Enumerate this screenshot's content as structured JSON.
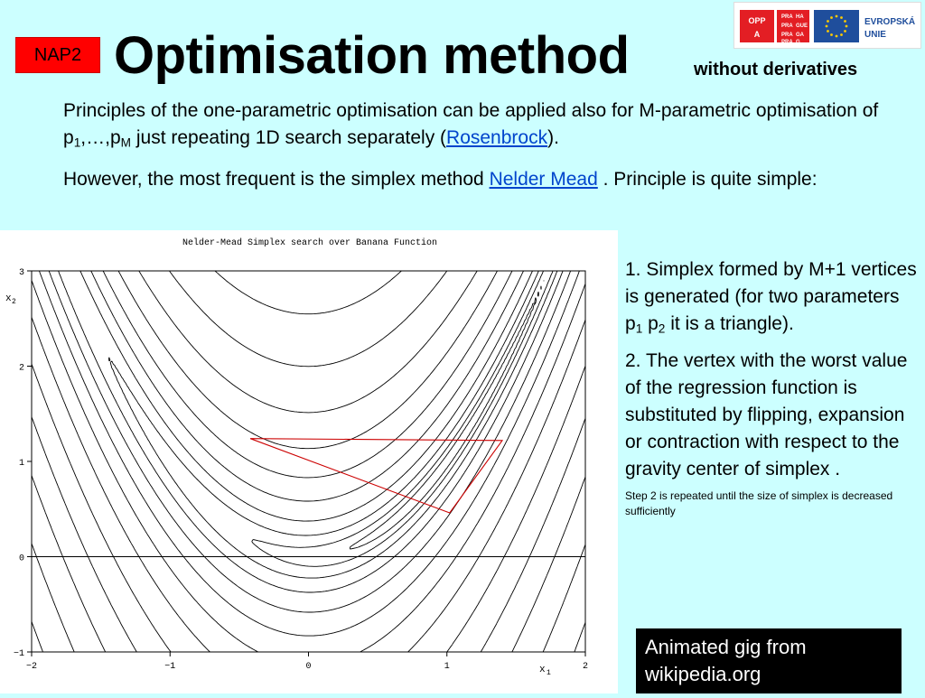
{
  "slide": {
    "badge": "NAP2",
    "title": "Optimisation method",
    "subtitle": "without derivatives",
    "logos": {
      "opp_cells": [
        "OPP",
        "A"
      ],
      "praha_cells": [
        "PRA",
        "HA",
        "PRA",
        "GUE",
        "PRA",
        "GA",
        "PRA",
        "G"
      ],
      "eu_label_1": "EVROPSKÁ",
      "eu_label_2": "UNIE"
    },
    "paragraph1": {
      "text_a": "Principles of the one-parametric optimisation can be applied also for M-parametric optimisation of  p",
      "sub_1": "1",
      "text_b": ",…,p",
      "sub_M": "M",
      "text_c": " just repeating 1D search separately (",
      "link": "Rosenbrock",
      "text_d": ")."
    },
    "paragraph2": {
      "text_a": "However, the most frequent is the simplex method ",
      "link": "Nelder Mead",
      "text_b": " . Principle is quite simple:"
    },
    "figure": {
      "title": "Nelder-Mead Simplex search over Banana Function",
      "x_axis_label": "x",
      "x_axis_sub": "1",
      "y_axis_label": "x",
      "y_axis_sub": "2",
      "x_ticks": [
        "−2",
        "−1",
        "0",
        "1",
        "2"
      ],
      "y_ticks": [
        "−1",
        "0",
        "1",
        "2",
        "3"
      ]
    },
    "steps": {
      "step1_a": "1. Simplex formed by M+1 vertices is generated (for two parameters p",
      "step1_sub1": "1",
      "step1_b": " p",
      "step1_sub2": "2",
      "step1_c": " it is a triangle).",
      "step2": "2. The vertex with the worst value of the regression function is substituted by flipping, expansion or contraction with respect to the gravity center of simplex .",
      "note": "Step 2 is repeated until the size of simplex is decreased sufficiently"
    },
    "animation_note": "Animated gig from wikipedia.org",
    "colors": {
      "background": "#ccffff",
      "badge": "#ff0000",
      "link": "#0044cc",
      "simplex": "#cc0000"
    }
  },
  "chart_data": {
    "type": "contour",
    "function": "Rosenbrock (banana) function",
    "xlim": [
      -2,
      2
    ],
    "ylim": [
      -1,
      3
    ],
    "contour_levels": [
      0.5,
      2,
      6,
      15,
      35,
      70,
      130,
      230,
      400,
      650,
      1000,
      1500,
      2200,
      3000
    ],
    "simplex_vertices": [
      [
        -0.42,
        1.24
      ],
      [
        1.4,
        1.22
      ],
      [
        1.02,
        0.46
      ]
    ],
    "grid": false
  }
}
